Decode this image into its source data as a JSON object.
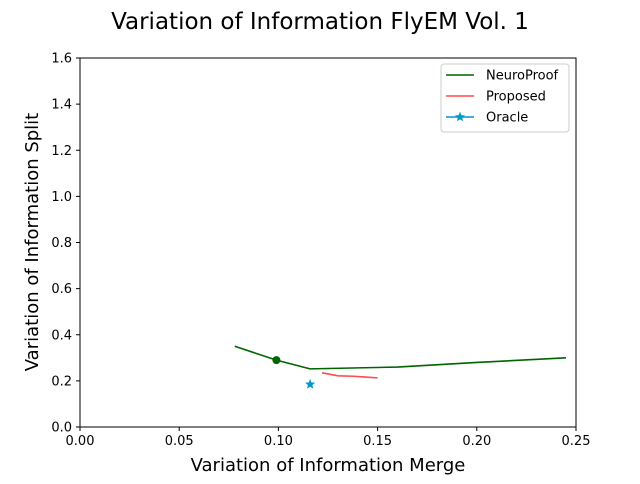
{
  "chart_data": {
    "type": "line",
    "title": "Variation of Information FlyEM Vol. 1",
    "xlabel": "Variation of Information Merge",
    "ylabel": "Variation of Information Split",
    "xlim": [
      0,
      0.25
    ],
    "ylim": [
      0,
      1.6
    ],
    "x_ticks": [
      0.0,
      0.05,
      0.1,
      0.15,
      0.2,
      0.25
    ],
    "x_tick_labels": [
      "0.00",
      "0.05",
      "0.10",
      "0.15",
      "0.20",
      "0.25"
    ],
    "y_ticks": [
      0.0,
      0.2,
      0.4,
      0.6,
      0.8,
      1.0,
      1.2,
      1.4,
      1.6
    ],
    "y_tick_labels": [
      "0.0",
      "0.2",
      "0.4",
      "0.6",
      "0.8",
      "1.0",
      "1.2",
      "1.4",
      "1.6"
    ],
    "grid": false,
    "legend_position": "top-right",
    "series": [
      {
        "name": "NeuroProof",
        "color": "#006400",
        "marker": "none",
        "points": [
          [
            0.078,
            0.35
          ],
          [
            0.099,
            0.29
          ],
          [
            0.116,
            0.252
          ],
          [
            0.16,
            0.26
          ],
          [
            0.2,
            0.28
          ],
          [
            0.245,
            0.3
          ]
        ]
      },
      {
        "name": "Proposed",
        "color": "#ff4c4c",
        "marker": "none",
        "points": [
          [
            0.122,
            0.235
          ],
          [
            0.13,
            0.222
          ],
          [
            0.138,
            0.22
          ],
          [
            0.143,
            0.217
          ],
          [
            0.15,
            0.213
          ]
        ]
      },
      {
        "name": "Oracle",
        "color": "#0099cc",
        "marker": "star",
        "points": [
          [
            0.116,
            0.185
          ]
        ]
      }
    ],
    "annotations": [
      {
        "type": "dot",
        "color": "#006400",
        "point": [
          0.099,
          0.29
        ]
      }
    ]
  }
}
